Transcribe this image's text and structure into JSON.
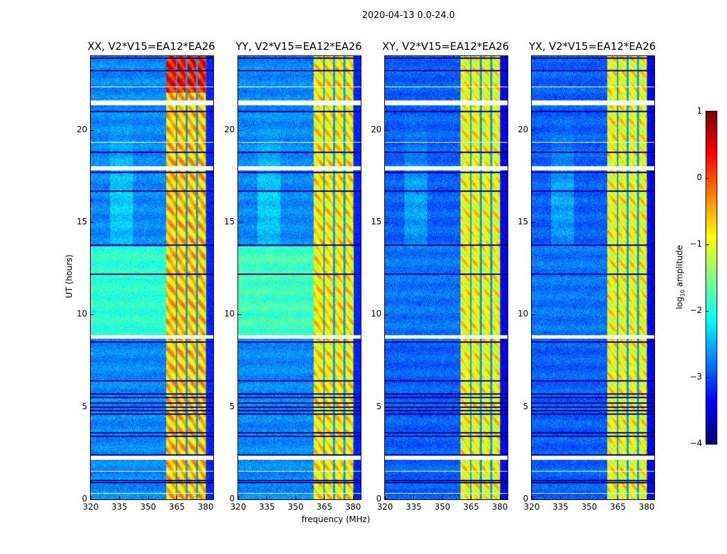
{
  "chart_data": {
    "type": "heatmap",
    "title": "2020-04-13 0.0-24.0",
    "xlabel": "frequency (MHz)",
    "ylabel": "UT (hours)",
    "xlim": [
      320,
      384
    ],
    "ylim": [
      0,
      24
    ],
    "xticks": [
      320,
      335,
      350,
      365,
      380
    ],
    "yticks": [
      0,
      5,
      10,
      15,
      20
    ],
    "colormap": "jet",
    "colorbar": {
      "label": "log10 amplitude",
      "label_main": "log",
      "label_sub": "10",
      "label_rest": " amplitude",
      "range": [
        -4,
        1
      ],
      "ticks": [
        1,
        0,
        -1,
        -2,
        -3,
        -4
      ],
      "tick_labels": [
        "1",
        "0",
        "−1",
        "−2",
        "−3",
        "−4"
      ]
    },
    "rfi_band_mhz": [
      359.5,
      380
    ],
    "band_gaps_mhz": [
      364.8,
      370.2,
      375.6
    ],
    "flagged_ut_hours": [
      [
        21.35,
        21.6
      ],
      [
        17.8,
        18.05
      ],
      [
        8.7,
        8.9
      ],
      [
        2.15,
        2.35
      ],
      [
        22.3,
        22.35
      ],
      [
        19.3,
        19.35
      ],
      [
        1.5,
        1.55
      ],
      [
        0.3,
        0.35
      ]
    ],
    "dark_ut_hours": [
      23.9,
      23.2,
      21.0,
      18.8,
      17.7,
      16.7,
      13.75,
      12.2,
      8.5,
      6.4,
      5.7,
      5.5,
      5.2,
      5.0,
      4.8,
      4.6,
      3.6,
      3.4,
      2.4,
      1.0,
      0.9
    ],
    "panels": [
      {
        "title": "XX, V2*V15=EA12*EA26",
        "background": -2.7,
        "day_background": -1.9,
        "band_level": -0.6
      },
      {
        "title": "YY, V2*V15=EA12*EA26",
        "background": -2.7,
        "day_background": -1.8,
        "band_level": -0.8
      },
      {
        "title": "XY, V2*V15=EA12*EA26",
        "background": -2.9,
        "day_background": -2.8,
        "band_level": -0.9
      },
      {
        "title": "YX, V2*V15=EA12*EA26",
        "background": -2.9,
        "day_background": -2.8,
        "band_level": -0.9
      }
    ]
  }
}
